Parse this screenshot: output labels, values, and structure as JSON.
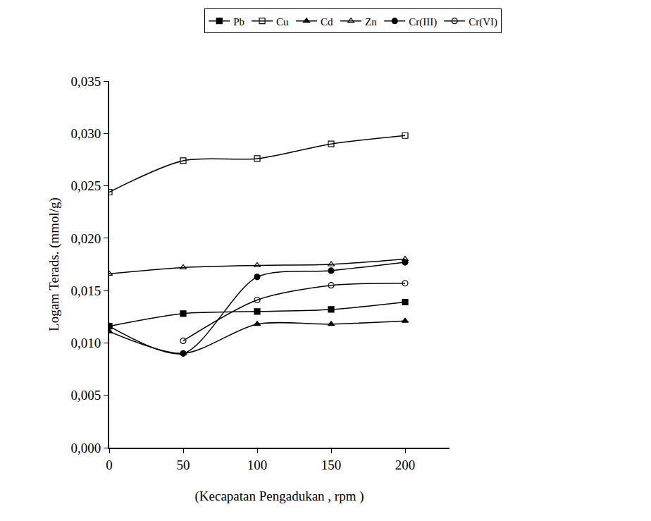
{
  "chart_data": {
    "type": "line",
    "x_label": "(Kecapatan Pengadukan , rpm )",
    "y_label": "Logam Terads. (mmol/g)",
    "x": [
      0,
      50,
      100,
      150,
      200
    ],
    "xlim": [
      0,
      230
    ],
    "xticks": [
      0,
      50,
      100,
      150,
      200
    ],
    "ylim": [
      0,
      0.035
    ],
    "yticks": [
      {
        "value": 0,
        "label": "0,000"
      },
      {
        "value": 0.005,
        "label": "0,005"
      },
      {
        "value": 0.01,
        "label": "0,010"
      },
      {
        "value": 0.015,
        "label": "0,015"
      },
      {
        "value": 0.02,
        "label": "0,020"
      },
      {
        "value": 0.025,
        "label": "0,025"
      },
      {
        "value": 0.03,
        "label": "0,030"
      },
      {
        "value": 0.035,
        "label": "0,035"
      }
    ],
    "grid": false,
    "legend": "top",
    "series": [
      {
        "name": "Pb",
        "color": "#000000",
        "marker": "square",
        "values": [
          0.0116,
          0.0128,
          0.013,
          0.0132,
          0.0139
        ]
      },
      {
        "name": "Cu",
        "color": "#000000",
        "marker": "square-open",
        "values": [
          0.0244,
          0.0274,
          0.0276,
          0.029,
          0.0298
        ]
      },
      {
        "name": "Cd",
        "color": "#000000",
        "marker": "triangle-up",
        "values": [
          0.0111,
          0.009,
          0.0118,
          0.0118,
          0.0121
        ]
      },
      {
        "name": "Zn",
        "color": "#000000",
        "marker": "triangle-up-open",
        "values": [
          0.0166,
          0.0172,
          0.0174,
          0.0175,
          0.018
        ]
      },
      {
        "name": "Cr(III)",
        "color": "#000000",
        "marker": "circle",
        "values": [
          0.0116,
          0.009,
          0.0163,
          0.0169,
          0.0177
        ]
      },
      {
        "name": "Cr(VI)",
        "color": "#000000",
        "marker": "circle-open",
        "values": [
          null,
          0.0102,
          0.0141,
          0.0155,
          0.0157
        ]
      }
    ]
  }
}
